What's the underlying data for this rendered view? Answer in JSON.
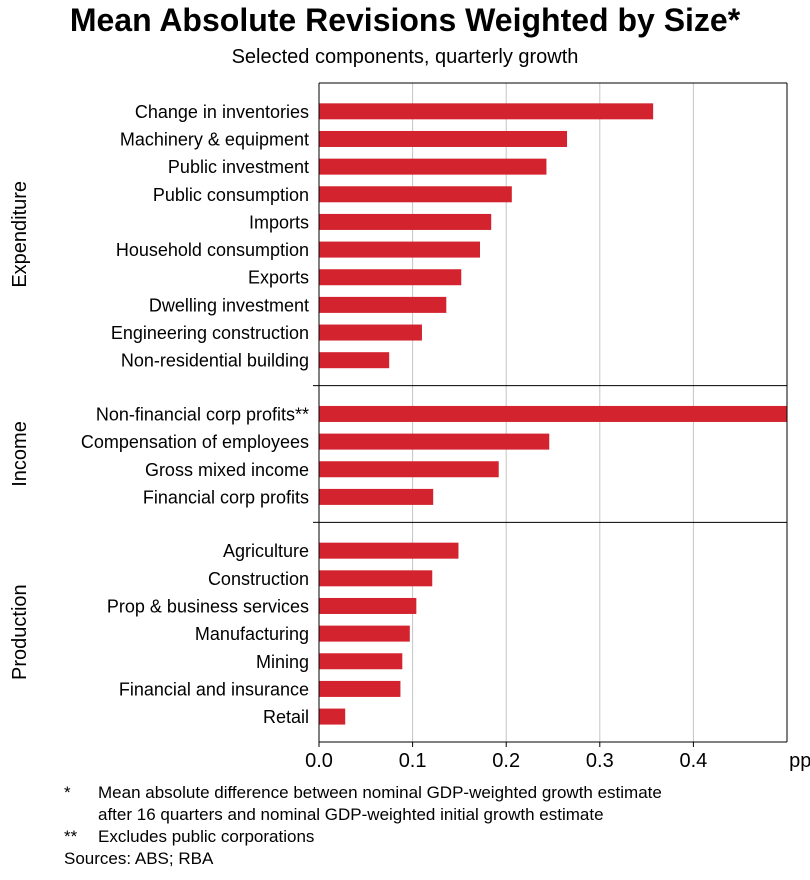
{
  "chart_data": {
    "type": "bar",
    "orientation": "horizontal",
    "title": "Mean Absolute Revisions Weighted by Size*",
    "subtitle": "Selected components, quarterly growth",
    "xunit": "ppt",
    "xlim": [
      0,
      0.5
    ],
    "xticks": [
      "0.0",
      "0.1",
      "0.2",
      "0.3",
      "0.4"
    ],
    "xtick_values": [
      0,
      0.1,
      0.2,
      0.3,
      0.4
    ],
    "grid": "vertical",
    "bar_color": "#d2232e",
    "groups": [
      {
        "name": "Expenditure",
        "categories": [
          "Change in inventories",
          "Machinery & equipment",
          "Public investment",
          "Public consumption",
          "Imports",
          "Household consumption",
          "Exports",
          "Dwelling investment",
          "Engineering construction",
          "Non-residential building"
        ],
        "values": [
          0.357,
          0.265,
          0.243,
          0.206,
          0.184,
          0.172,
          0.152,
          0.136,
          0.11,
          0.075
        ]
      },
      {
        "name": "Income",
        "categories": [
          "Non-financial corp profits**",
          "Compensation of employees",
          "Gross mixed income",
          "Financial corp profits"
        ],
        "values": [
          0.5,
          0.246,
          0.192,
          0.122
        ]
      },
      {
        "name": "Production",
        "categories": [
          "Agriculture",
          "Construction",
          "Prop & business services",
          "Manufacturing",
          "Mining",
          "Financial and insurance",
          "Retail"
        ],
        "values": [
          0.149,
          0.121,
          0.104,
          0.097,
          0.089,
          0.087,
          0.028
        ]
      }
    ]
  },
  "notes": [
    {
      "mark": "*",
      "text": "Mean absolute difference between nominal GDP-weighted growth estimate\nafter 16 quarters and nominal GDP-weighted initial growth estimate"
    },
    {
      "mark": "**",
      "text": "Excludes public corporations"
    }
  ],
  "sources": "Sources: ABS; RBA"
}
